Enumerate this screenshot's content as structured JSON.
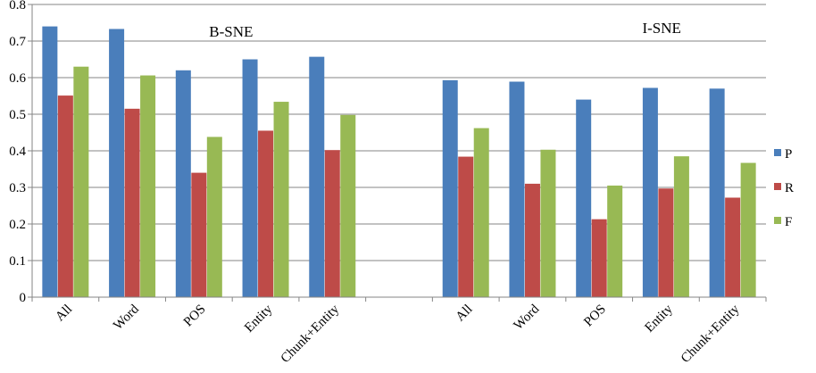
{
  "chart_data": {
    "type": "bar",
    "title": "",
    "xlabel": "",
    "ylabel": "",
    "ylim": [
      0,
      0.8
    ],
    "yticks": [
      0,
      0.1,
      0.2,
      0.3,
      0.4,
      0.5,
      0.6,
      0.7,
      0.8
    ],
    "grid": true,
    "legend_position": "right",
    "series": [
      {
        "name": "P",
        "color": "#4a7ebb"
      },
      {
        "name": "R",
        "color": "#be4b48"
      },
      {
        "name": "F",
        "color": "#98b954"
      }
    ],
    "groups": [
      {
        "title": "B-SNE",
        "categories": [
          "All",
          "Word",
          "POS",
          "Entity",
          "Chunk+Entity"
        ],
        "values": {
          "P": [
            0.74,
            0.733,
            0.62,
            0.65,
            0.657
          ],
          "R": [
            0.551,
            0.515,
            0.34,
            0.455,
            0.402
          ],
          "F": [
            0.63,
            0.606,
            0.438,
            0.534,
            0.498
          ]
        }
      },
      {
        "title": "I-SNE",
        "categories": [
          "All",
          "Word",
          "POS",
          "Entity",
          "Chunk+Entity"
        ],
        "values": {
          "P": [
            0.593,
            0.589,
            0.54,
            0.572,
            0.57
          ],
          "R": [
            0.384,
            0.31,
            0.213,
            0.297,
            0.272
          ],
          "F": [
            0.462,
            0.403,
            0.305,
            0.385,
            0.367
          ]
        }
      }
    ]
  }
}
